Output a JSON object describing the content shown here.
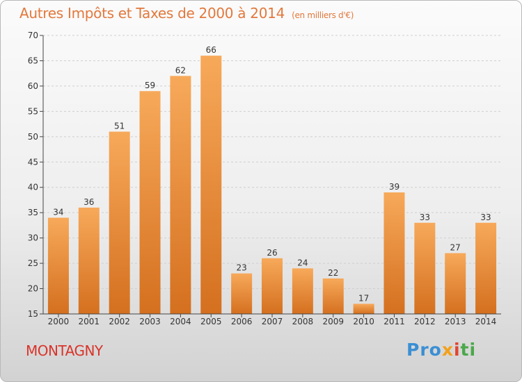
{
  "header": {
    "title": "Autres Impôts et Taxes de 2000 à 2014",
    "unit": "(en milliers d'€)"
  },
  "footer": {
    "place": "MONTAGNY",
    "logo_parts": [
      "Pro",
      "x",
      "i",
      "ti"
    ]
  },
  "colors": {
    "bar_top": "#f7a95a",
    "bar_bottom": "#d4701f",
    "title": "#e2783c",
    "place": "#d9342a"
  },
  "chart_data": {
    "type": "bar",
    "categories": [
      "2000",
      "2001",
      "2002",
      "2003",
      "2004",
      "2005",
      "2006",
      "2007",
      "2008",
      "2009",
      "2010",
      "2011",
      "2012",
      "2013",
      "2014"
    ],
    "values": [
      34,
      36,
      51,
      59,
      62,
      66,
      23,
      26,
      24,
      22,
      17,
      39,
      33,
      27,
      33
    ],
    "ylim": [
      15,
      70
    ],
    "yticks": [
      15,
      20,
      25,
      30,
      35,
      40,
      45,
      50,
      55,
      60,
      65,
      70
    ],
    "grid": true
  }
}
